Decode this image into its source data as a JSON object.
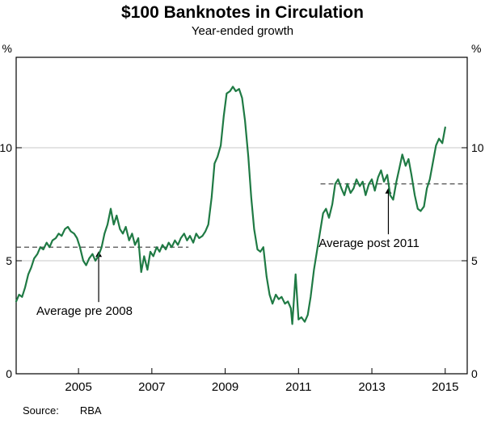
{
  "header": {
    "title": "$100 Banknotes in Circulation",
    "subtitle": "Year-ended growth"
  },
  "footer": {
    "source_label": "Source:",
    "source_value": "RBA"
  },
  "chart_data": {
    "type": "line",
    "title": "$100 Banknotes in Circulation",
    "subtitle": "Year-ended growth",
    "unit": "%",
    "x_range": [
      2003.3,
      2015.6
    ],
    "y_range": [
      0,
      14
    ],
    "y_ticks": [
      0,
      5,
      10
    ],
    "x_ticks": [
      2005,
      2007,
      2009,
      2011,
      2013,
      2015
    ],
    "gridlines": [
      5,
      10
    ],
    "grid": true,
    "legend": "none",
    "line_color": "#1f7a44",
    "series": [
      {
        "name": "$100 banknotes year-ended growth (%)",
        "color": "#1f7a44",
        "points": [
          [
            2003.3,
            3.2
          ],
          [
            2003.38,
            3.5
          ],
          [
            2003.46,
            3.4
          ],
          [
            2003.54,
            3.8
          ],
          [
            2003.63,
            4.4
          ],
          [
            2003.71,
            4.7
          ],
          [
            2003.79,
            5.1
          ],
          [
            2003.88,
            5.3
          ],
          [
            2003.96,
            5.6
          ],
          [
            2004.04,
            5.5
          ],
          [
            2004.13,
            5.8
          ],
          [
            2004.21,
            5.6
          ],
          [
            2004.29,
            5.9
          ],
          [
            2004.38,
            6.0
          ],
          [
            2004.46,
            6.2
          ],
          [
            2004.54,
            6.1
          ],
          [
            2004.63,
            6.4
          ],
          [
            2004.71,
            6.5
          ],
          [
            2004.79,
            6.3
          ],
          [
            2004.88,
            6.2
          ],
          [
            2004.96,
            6.0
          ],
          [
            2005.04,
            5.6
          ],
          [
            2005.13,
            5.0
          ],
          [
            2005.21,
            4.8
          ],
          [
            2005.29,
            5.1
          ],
          [
            2005.38,
            5.3
          ],
          [
            2005.46,
            5.0
          ],
          [
            2005.54,
            5.2
          ],
          [
            2005.63,
            5.6
          ],
          [
            2005.71,
            6.2
          ],
          [
            2005.79,
            6.6
          ],
          [
            2005.88,
            7.3
          ],
          [
            2005.96,
            6.6
          ],
          [
            2006.04,
            7.0
          ],
          [
            2006.13,
            6.4
          ],
          [
            2006.21,
            6.2
          ],
          [
            2006.29,
            6.5
          ],
          [
            2006.38,
            5.9
          ],
          [
            2006.46,
            6.2
          ],
          [
            2006.54,
            5.7
          ],
          [
            2006.63,
            6.0
          ],
          [
            2006.71,
            4.5
          ],
          [
            2006.79,
            5.2
          ],
          [
            2006.88,
            4.6
          ],
          [
            2006.96,
            5.4
          ],
          [
            2007.04,
            5.2
          ],
          [
            2007.13,
            5.6
          ],
          [
            2007.21,
            5.4
          ],
          [
            2007.29,
            5.7
          ],
          [
            2007.38,
            5.5
          ],
          [
            2007.46,
            5.8
          ],
          [
            2007.54,
            5.6
          ],
          [
            2007.63,
            5.9
          ],
          [
            2007.71,
            5.7
          ],
          [
            2007.79,
            6.0
          ],
          [
            2007.88,
            6.2
          ],
          [
            2007.96,
            5.9
          ],
          [
            2008.04,
            6.1
          ],
          [
            2008.13,
            5.8
          ],
          [
            2008.21,
            6.2
          ],
          [
            2008.29,
            6.0
          ],
          [
            2008.38,
            6.1
          ],
          [
            2008.46,
            6.3
          ],
          [
            2008.54,
            6.6
          ],
          [
            2008.63,
            7.8
          ],
          [
            2008.71,
            9.3
          ],
          [
            2008.79,
            9.6
          ],
          [
            2008.88,
            10.1
          ],
          [
            2008.96,
            11.4
          ],
          [
            2009.04,
            12.4
          ],
          [
            2009.13,
            12.5
          ],
          [
            2009.21,
            12.7
          ],
          [
            2009.29,
            12.5
          ],
          [
            2009.38,
            12.6
          ],
          [
            2009.46,
            12.2
          ],
          [
            2009.54,
            11.2
          ],
          [
            2009.63,
            9.6
          ],
          [
            2009.71,
            7.8
          ],
          [
            2009.79,
            6.4
          ],
          [
            2009.88,
            5.5
          ],
          [
            2009.96,
            5.4
          ],
          [
            2010.04,
            5.6
          ],
          [
            2010.13,
            4.3
          ],
          [
            2010.21,
            3.5
          ],
          [
            2010.29,
            3.1
          ],
          [
            2010.38,
            3.5
          ],
          [
            2010.46,
            3.3
          ],
          [
            2010.54,
            3.4
          ],
          [
            2010.63,
            3.1
          ],
          [
            2010.71,
            3.2
          ],
          [
            2010.79,
            2.9
          ],
          [
            2010.83,
            2.2
          ],
          [
            2010.92,
            4.4
          ],
          [
            2011.0,
            2.4
          ],
          [
            2011.08,
            2.5
          ],
          [
            2011.17,
            2.3
          ],
          [
            2011.25,
            2.6
          ],
          [
            2011.33,
            3.4
          ],
          [
            2011.42,
            4.6
          ],
          [
            2011.5,
            5.4
          ],
          [
            2011.58,
            6.2
          ],
          [
            2011.67,
            7.1
          ],
          [
            2011.75,
            7.3
          ],
          [
            2011.83,
            6.9
          ],
          [
            2011.92,
            7.5
          ],
          [
            2012.0,
            8.4
          ],
          [
            2012.08,
            8.6
          ],
          [
            2012.17,
            8.2
          ],
          [
            2012.25,
            7.9
          ],
          [
            2012.33,
            8.4
          ],
          [
            2012.42,
            8.0
          ],
          [
            2012.5,
            8.2
          ],
          [
            2012.58,
            8.6
          ],
          [
            2012.67,
            8.3
          ],
          [
            2012.75,
            8.5
          ],
          [
            2012.83,
            7.9
          ],
          [
            2012.92,
            8.4
          ],
          [
            2013.0,
            8.6
          ],
          [
            2013.08,
            8.1
          ],
          [
            2013.17,
            8.7
          ],
          [
            2013.25,
            9.0
          ],
          [
            2013.33,
            8.5
          ],
          [
            2013.42,
            8.8
          ],
          [
            2013.5,
            7.9
          ],
          [
            2013.58,
            7.7
          ],
          [
            2013.67,
            8.5
          ],
          [
            2013.75,
            9.1
          ],
          [
            2013.83,
            9.7
          ],
          [
            2013.92,
            9.2
          ],
          [
            2014.0,
            9.5
          ],
          [
            2014.08,
            8.8
          ],
          [
            2014.17,
            7.9
          ],
          [
            2014.25,
            7.3
          ],
          [
            2014.33,
            7.2
          ],
          [
            2014.42,
            7.4
          ],
          [
            2014.5,
            8.2
          ],
          [
            2014.58,
            8.6
          ],
          [
            2014.67,
            9.4
          ],
          [
            2014.75,
            10.1
          ],
          [
            2014.83,
            10.4
          ],
          [
            2014.92,
            10.2
          ],
          [
            2015.0,
            10.9
          ]
        ]
      }
    ],
    "reference_lines": [
      {
        "label": "Average pre 2008",
        "value": 5.6,
        "x_start": 2003.3,
        "x_end": 2008.0,
        "annotation": {
          "text_x": 2003.85,
          "text_y": 2.6,
          "arrow_x": 2005.55
        }
      },
      {
        "label": "Average post 2011",
        "value": 8.4,
        "x_start": 2011.6,
        "x_end": 2015.6,
        "annotation": {
          "text_x": 2011.55,
          "text_y": 5.6,
          "arrow_x": 2013.45
        }
      }
    ]
  }
}
